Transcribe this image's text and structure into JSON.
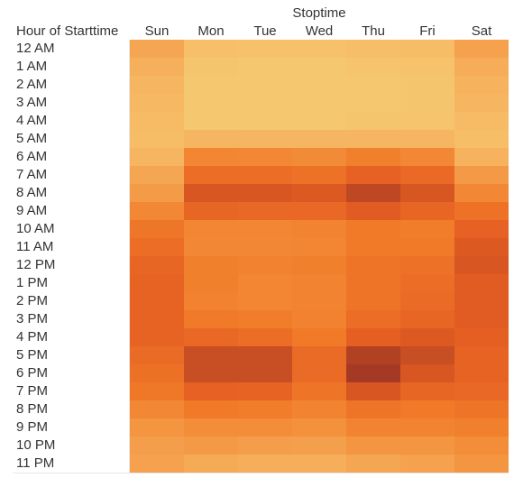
{
  "chart_data": {
    "type": "heatmap",
    "column_header_title": "Stoptime",
    "row_header_title": "Hour of Starttime",
    "columns": [
      "Sun",
      "Mon",
      "Tue",
      "Wed",
      "Thu",
      "Fri",
      "Sat"
    ],
    "rows": [
      "12 AM",
      "1 AM",
      "2 AM",
      "3 AM",
      "4 AM",
      "5 AM",
      "6 AM",
      "7 AM",
      "8 AM",
      "9 AM",
      "10 AM",
      "11 AM",
      "12 PM",
      "1 PM",
      "2 PM",
      "3 PM",
      "4 PM",
      "5 PM",
      "6 PM",
      "7 PM",
      "8 PM",
      "9 PM",
      "10 PM",
      "11 PM"
    ],
    "values": [
      [
        0.3,
        0.15,
        0.14,
        0.14,
        0.16,
        0.17,
        0.32
      ],
      [
        0.25,
        0.11,
        0.1,
        0.1,
        0.12,
        0.13,
        0.27
      ],
      [
        0.22,
        0.09,
        0.09,
        0.09,
        0.1,
        0.11,
        0.24
      ],
      [
        0.2,
        0.09,
        0.09,
        0.09,
        0.1,
        0.11,
        0.21
      ],
      [
        0.18,
        0.1,
        0.1,
        0.1,
        0.11,
        0.12,
        0.18
      ],
      [
        0.17,
        0.22,
        0.21,
        0.21,
        0.22,
        0.22,
        0.16
      ],
      [
        0.22,
        0.45,
        0.44,
        0.43,
        0.48,
        0.44,
        0.24
      ],
      [
        0.3,
        0.62,
        0.62,
        0.58,
        0.72,
        0.65,
        0.36
      ],
      [
        0.35,
        0.8,
        0.8,
        0.78,
        0.9,
        0.8,
        0.44
      ],
      [
        0.44,
        0.68,
        0.66,
        0.66,
        0.76,
        0.68,
        0.58
      ],
      [
        0.55,
        0.45,
        0.45,
        0.46,
        0.52,
        0.5,
        0.72
      ],
      [
        0.62,
        0.44,
        0.44,
        0.45,
        0.52,
        0.52,
        0.78
      ],
      [
        0.68,
        0.48,
        0.47,
        0.48,
        0.56,
        0.58,
        0.8
      ],
      [
        0.7,
        0.48,
        0.45,
        0.46,
        0.56,
        0.62,
        0.76
      ],
      [
        0.7,
        0.47,
        0.45,
        0.46,
        0.56,
        0.64,
        0.76
      ],
      [
        0.7,
        0.52,
        0.5,
        0.47,
        0.62,
        0.68,
        0.76
      ],
      [
        0.7,
        0.66,
        0.62,
        0.52,
        0.74,
        0.78,
        0.74
      ],
      [
        0.64,
        0.86,
        0.86,
        0.64,
        0.95,
        0.86,
        0.7
      ],
      [
        0.6,
        0.86,
        0.86,
        0.64,
        1.0,
        0.8,
        0.7
      ],
      [
        0.54,
        0.72,
        0.7,
        0.56,
        0.8,
        0.68,
        0.66
      ],
      [
        0.44,
        0.52,
        0.5,
        0.46,
        0.56,
        0.52,
        0.56
      ],
      [
        0.38,
        0.42,
        0.42,
        0.4,
        0.46,
        0.46,
        0.48
      ],
      [
        0.34,
        0.36,
        0.34,
        0.33,
        0.38,
        0.38,
        0.42
      ],
      [
        0.32,
        0.28,
        0.26,
        0.26,
        0.3,
        0.32,
        0.38
      ]
    ],
    "color_scale": [
      "#f5d67a",
      "#f6b05c",
      "#f17c29",
      "#e45d22",
      "#a53a24"
    ]
  }
}
